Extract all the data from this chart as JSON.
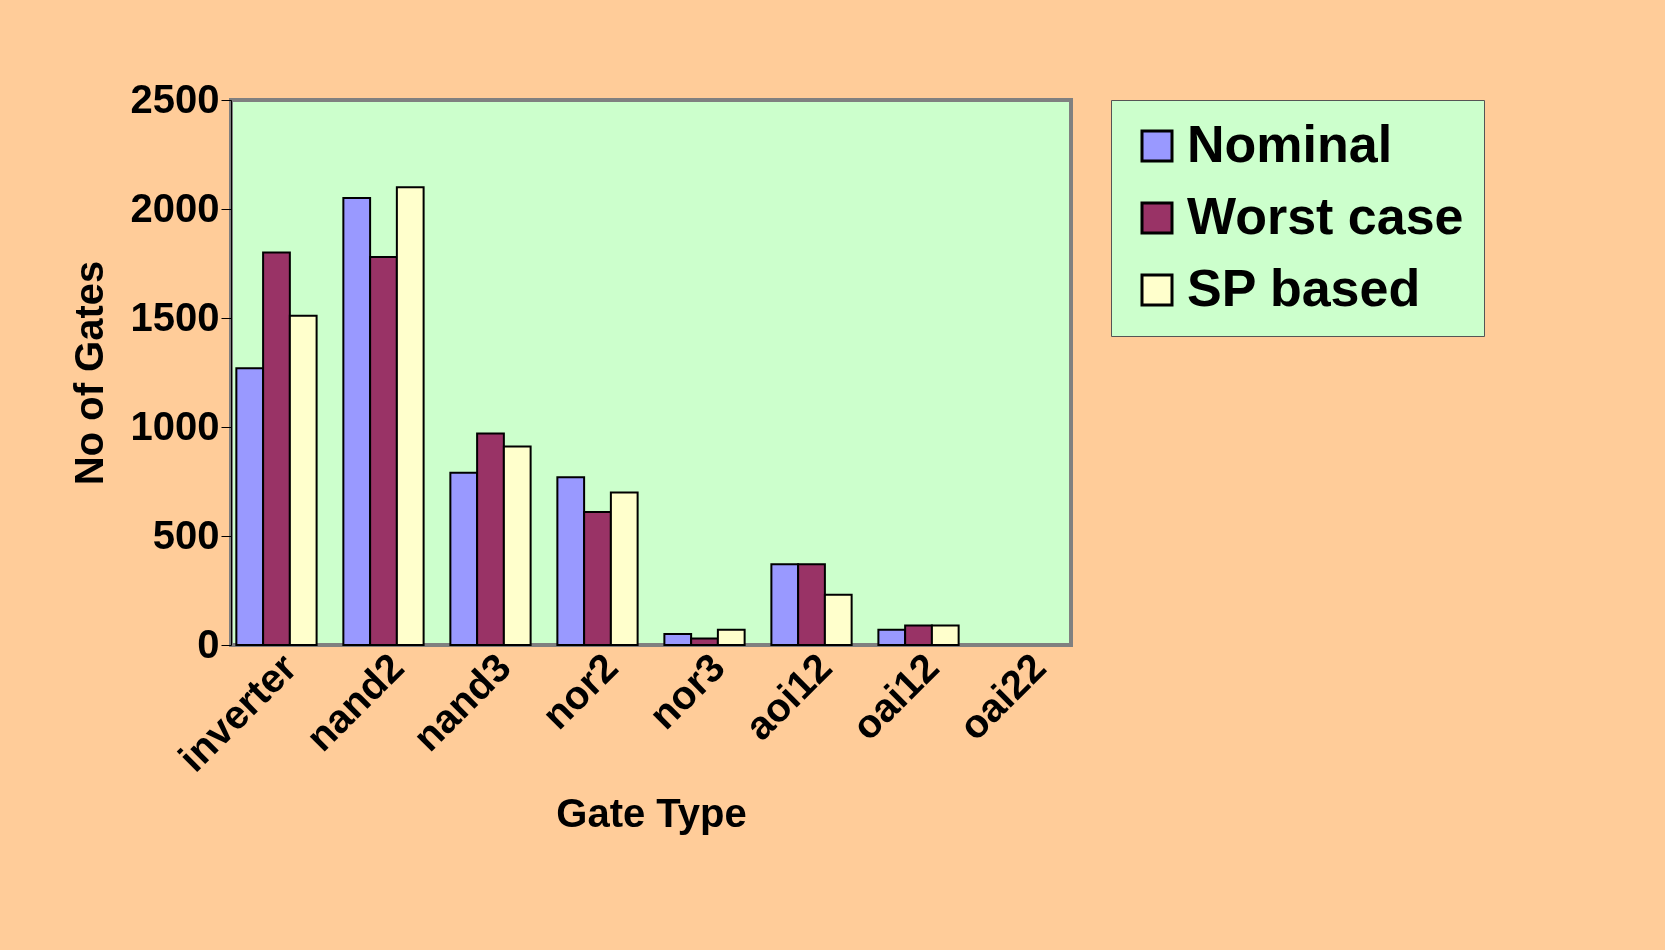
{
  "chart_data": {
    "type": "bar",
    "xlabel": "Gate Type",
    "ylabel": "No of Gates",
    "categories": [
      "inverter",
      "nand2",
      "nand3",
      "nor2",
      "nor3",
      "aoi12",
      "oai12",
      "oai22"
    ],
    "series": [
      {
        "name": "Nominal",
        "color": "#9999ff",
        "values": [
          1270,
          2050,
          790,
          770,
          50,
          370,
          70,
          null
        ]
      },
      {
        "name": "Worst case",
        "color": "#993366",
        "values": [
          1800,
          1780,
          970,
          610,
          30,
          370,
          90,
          null
        ]
      },
      {
        "name": "SP based",
        "color": "#ffffcc",
        "values": [
          1510,
          2100,
          910,
          700,
          70,
          230,
          90,
          null
        ]
      }
    ],
    "ylim": [
      0,
      2500
    ],
    "yticks": [
      0,
      500,
      1000,
      1500,
      2000,
      2500
    ],
    "grid": false,
    "legend": "right"
  }
}
